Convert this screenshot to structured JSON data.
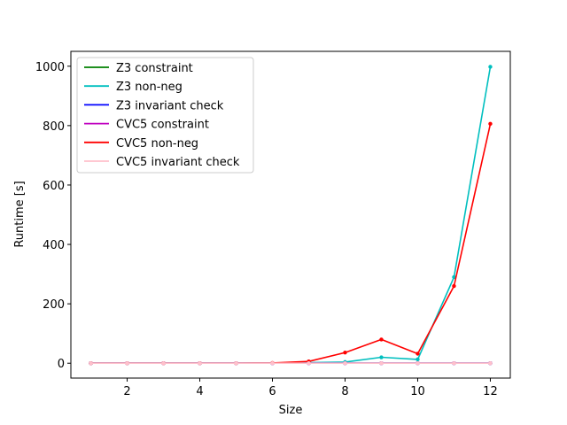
{
  "chart_data": {
    "type": "line",
    "title": "",
    "xlabel": "Size",
    "ylabel": "Runtime [s]",
    "xlim": [
      0.45,
      12.55
    ],
    "ylim": [
      -50,
      1050
    ],
    "xticks": [
      2,
      4,
      6,
      8,
      10,
      12
    ],
    "yticks": [
      0,
      200,
      400,
      600,
      800,
      1000
    ],
    "grid": false,
    "legend_position": "top-left",
    "x": [
      1,
      2,
      3,
      4,
      5,
      6,
      7,
      8,
      9,
      10,
      11,
      12
    ],
    "series": [
      {
        "name": "Z3 constraint",
        "color": "#008000",
        "values": [
          0,
          0,
          0,
          0,
          0,
          0,
          0,
          0,
          0,
          0,
          0,
          0
        ]
      },
      {
        "name": "Z3 non-neg",
        "color": "#00bfbf",
        "values": [
          0,
          0,
          0,
          0,
          0,
          0,
          2,
          4,
          20,
          13,
          290,
          998
        ]
      },
      {
        "name": "Z3 invariant check",
        "color": "#0000ff",
        "values": [
          0,
          0,
          0,
          0,
          0,
          0,
          0,
          0,
          0,
          0,
          0,
          0
        ]
      },
      {
        "name": "CVC5 constraint",
        "color": "#bf00bf",
        "values": [
          0,
          0,
          0,
          0,
          0,
          0,
          0,
          0,
          0,
          0,
          0,
          0
        ]
      },
      {
        "name": "CVC5 non-neg",
        "color": "#ff0000",
        "values": [
          0,
          0,
          0,
          0,
          0,
          1,
          6,
          36,
          80,
          32,
          260,
          806
        ]
      },
      {
        "name": "CVC5 invariant check",
        "color": "#ffc0cb",
        "values": [
          0,
          0,
          0,
          0,
          0,
          0,
          0,
          0,
          0,
          0,
          0,
          0
        ]
      }
    ]
  }
}
